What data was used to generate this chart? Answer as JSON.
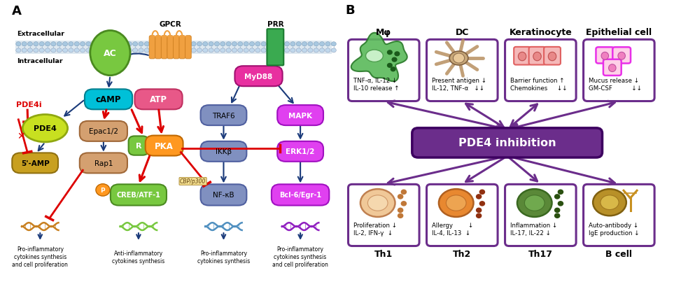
{
  "bg_color": "#ffffff",
  "purple": "#6B2D8B",
  "arrow_purple": "#6B2D8B",
  "dark_blue": "#1a3a7a",
  "top_row_labels": [
    "Mφ",
    "DC",
    "Keratinocyte",
    "Epithelial cell"
  ],
  "bottom_row_labels": [
    "Th1",
    "Th2",
    "Th17",
    "B cell"
  ],
  "center_label": "PDE4 inhibition",
  "top_row_text": [
    "TNF-α, IL-12 ↓\nIL-10 release ↑",
    "Present antigen ↓\nIL-12, TNF-α   ↓↓",
    "Barrier function ↑\nChemokines     ↓↓",
    "Mucus release ↓\nGM-CSF          ↓↓"
  ],
  "bottom_row_text": [
    "Proliferation ↓\nIL-2, IFN-γ  ↓",
    "Allergy        ↓\nIL-4, IL-13  ↓",
    "Inflammation ↓\nIL-17, IL-22 ↓",
    "Auto-antibody ↓\nIgE production ↓"
  ]
}
